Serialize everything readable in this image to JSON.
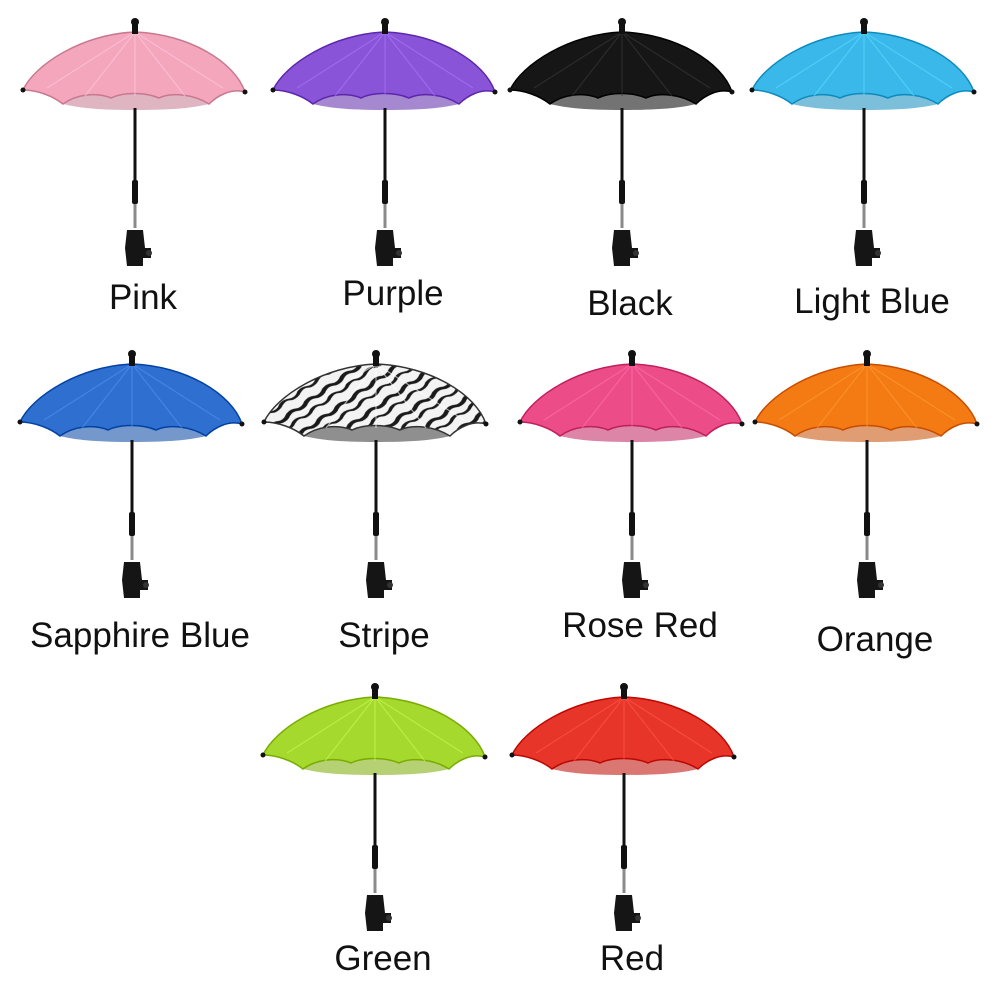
{
  "umbrellas": [
    {
      "label": "Pink",
      "color": "#f4a6bd",
      "pattern": "solid"
    },
    {
      "label": "Purple",
      "color": "#8a54d8",
      "pattern": "solid"
    },
    {
      "label": "Black",
      "color": "#161616",
      "pattern": "solid"
    },
    {
      "label": "Light Blue",
      "color": "#3bb8ea",
      "pattern": "solid"
    },
    {
      "label": "Sapphire Blue",
      "color": "#2f6fcf",
      "pattern": "solid"
    },
    {
      "label": "Stripe",
      "color": "#f2f2f2",
      "pattern": "zebra"
    },
    {
      "label": "Rose Red",
      "color": "#ec4d89",
      "pattern": "solid"
    },
    {
      "label": "Orange",
      "color": "#f47a14",
      "pattern": "solid"
    },
    {
      "label": "Green",
      "color": "#a6d92d",
      "pattern": "solid"
    },
    {
      "label": "Red",
      "color": "#e8352a",
      "pattern": "solid"
    }
  ]
}
